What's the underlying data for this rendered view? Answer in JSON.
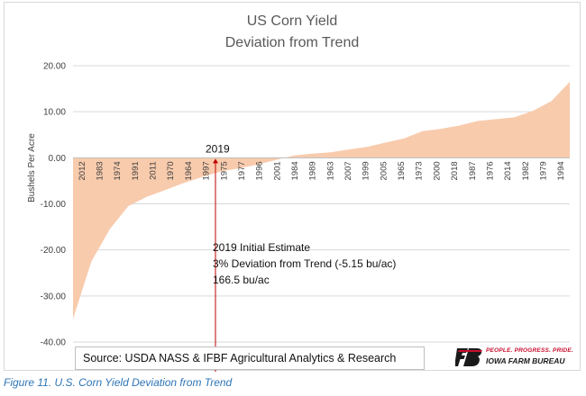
{
  "chart_data": {
    "type": "area",
    "title": [
      "US Corn Yield",
      "Deviation from Trend"
    ],
    "ylabel": "Bushels Per Acre",
    "xlabel": "",
    "ylim": [
      -40,
      20
    ],
    "yticks": [
      "20.00",
      "10.00",
      "0.00",
      "-10.00",
      "-20.00",
      "-30.00",
      "-40.00"
    ],
    "grid": true,
    "series_color": "#f8cbad",
    "categories": [
      "2012",
      "1983",
      "1974",
      "1991",
      "2011",
      "1970",
      "1964",
      "1997",
      "1975",
      "1977",
      "1996",
      "2001",
      "1984",
      "1989",
      "1963",
      "2007",
      "1999",
      "2005",
      "1965",
      "1973",
      "2000",
      "2018",
      "1987",
      "1976",
      "2014",
      "1982",
      "1979",
      "1994"
    ],
    "values": [
      -35.0,
      -22.5,
      -15.5,
      -10.5,
      -8.5,
      -7.0,
      -5.5,
      -4.2,
      -3.0,
      -2.3,
      -1.5,
      -0.5,
      0.5,
      0.9,
      1.2,
      1.8,
      2.4,
      3.3,
      4.2,
      5.8,
      6.3,
      7.0,
      8.0,
      8.4,
      8.8,
      10.2,
      12.3,
      16.5
    ],
    "highlight": {
      "label": "2019",
      "value": -5.15,
      "annotation": [
        "2019  Initial Estimate",
        "3% Deviation from Trend (-5.15 bu/ac)",
        "166.5  bu/ac"
      ],
      "color": "#c00000"
    }
  },
  "source": "Source: USDA NASS & IFBF Agricultural Analytics & Research",
  "logo": {
    "tagline": "PEOPLE. PROGRESS. PRIDE.",
    "name": "IOWA FARM BUREAU",
    "color": "#c8102e"
  },
  "caption": "Figure 11. U.S. Corn Yield Deviation from Trend"
}
